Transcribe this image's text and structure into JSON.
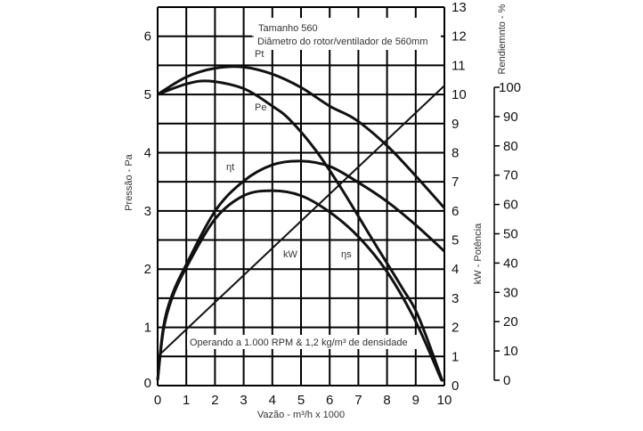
{
  "chart_data": {
    "type": "line",
    "title": "",
    "annotations": {
      "size": "Tamanho 560",
      "diameter": "Diâmetro do rotor/ventilador de 560mm",
      "operating": "Operando a 1.000 RPM & 1,2 kg/m³ de densidade"
    },
    "xlabel": "Vazão  -  m³/h  x 1000",
    "ylabel_left": "Pressão  -  Pa",
    "ylabel_right_kw": "kW  -  Potência",
    "ylabel_right_eff": "Rendiemnto - %",
    "xlim": [
      0,
      10
    ],
    "ylim_pressure": [
      0,
      6.5
    ],
    "ylim_kw": [
      0,
      13
    ],
    "ylim_efficiency": [
      0,
      100
    ],
    "x_ticks": [
      "0",
      "1",
      "2",
      "3",
      "4",
      "5",
      "6",
      "7",
      "8",
      "9",
      "10"
    ],
    "pressure_ticks": [
      "0",
      "1",
      "2",
      "3",
      "4",
      "5",
      "6"
    ],
    "kw_ticks": [
      "0",
      "1",
      "2",
      "3",
      "4",
      "5",
      "6",
      "7",
      "8",
      "9",
      "10",
      "11",
      "12",
      "13"
    ],
    "efficiency_ticks": [
      "0",
      "10",
      "20",
      "30",
      "40",
      "50",
      "60",
      "70",
      "80",
      "90",
      "100"
    ],
    "grid": true,
    "series": [
      {
        "name": "Pt",
        "axis": "pressure",
        "x": [
          0,
          1,
          2,
          3,
          4,
          5,
          6,
          6.9,
          8,
          9,
          10
        ],
        "y": [
          5.0,
          5.3,
          5.45,
          5.47,
          5.35,
          5.12,
          4.8,
          4.57,
          4.12,
          3.6,
          3.05
        ]
      },
      {
        "name": "Pe",
        "axis": "pressure",
        "x": [
          0,
          1,
          1.8,
          3,
          4,
          4.6,
          5.5,
          6.4,
          7.5,
          8.5,
          9.1,
          9.94
        ],
        "y": [
          5.0,
          5.18,
          5.23,
          5.1,
          4.8,
          4.57,
          4.05,
          3.39,
          2.5,
          1.7,
          1.18,
          0.07
        ]
      },
      {
        "name": "ηt",
        "axis": "efficiency",
        "x": [
          0,
          0.2,
          0.5,
          1,
          2,
          3,
          4,
          5,
          6,
          7,
          8,
          9,
          10
        ],
        "y": [
          0,
          18,
          29,
          39.5,
          57.7,
          68,
          73.5,
          74.8,
          73,
          67.5,
          61,
          53,
          44
        ]
      },
      {
        "name": "ηs",
        "axis": "efficiency",
        "x": [
          0,
          0.2,
          0.5,
          1,
          2,
          3,
          4,
          5,
          6,
          7,
          8,
          9,
          9.9
        ],
        "y": [
          0,
          17,
          28,
          38.5,
          55,
          63,
          64.7,
          63,
          57.4,
          49,
          37,
          20,
          0
        ]
      },
      {
        "name": "kW",
        "axis": "kw",
        "x": [
          0,
          10
        ],
        "y": [
          1.0,
          10.3
        ]
      }
    ]
  }
}
